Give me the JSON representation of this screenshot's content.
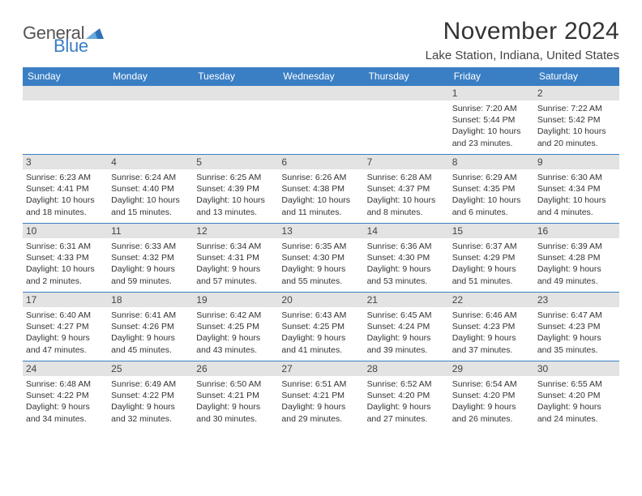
{
  "logo": {
    "word1": "General",
    "word2": "Blue",
    "tri_color": "#2f72b8"
  },
  "title": "November 2024",
  "location": "Lake Station, Indiana, United States",
  "colors": {
    "header_bg": "#3a7fc4",
    "header_fg": "#ffffff",
    "daynum_bg": "#e3e3e3",
    "rule": "#3a7fc4",
    "text": "#333333"
  },
  "day_headers": [
    "Sunday",
    "Monday",
    "Tuesday",
    "Wednesday",
    "Thursday",
    "Friday",
    "Saturday"
  ],
  "weeks": [
    [
      null,
      null,
      null,
      null,
      null,
      {
        "n": "1",
        "sunrise": "7:20 AM",
        "sunset": "5:44 PM",
        "day_h": 10,
        "day_m": 23
      },
      {
        "n": "2",
        "sunrise": "7:22 AM",
        "sunset": "5:42 PM",
        "day_h": 10,
        "day_m": 20
      }
    ],
    [
      {
        "n": "3",
        "sunrise": "6:23 AM",
        "sunset": "4:41 PM",
        "day_h": 10,
        "day_m": 18
      },
      {
        "n": "4",
        "sunrise": "6:24 AM",
        "sunset": "4:40 PM",
        "day_h": 10,
        "day_m": 15
      },
      {
        "n": "5",
        "sunrise": "6:25 AM",
        "sunset": "4:39 PM",
        "day_h": 10,
        "day_m": 13
      },
      {
        "n": "6",
        "sunrise": "6:26 AM",
        "sunset": "4:38 PM",
        "day_h": 10,
        "day_m": 11
      },
      {
        "n": "7",
        "sunrise": "6:28 AM",
        "sunset": "4:37 PM",
        "day_h": 10,
        "day_m": 8
      },
      {
        "n": "8",
        "sunrise": "6:29 AM",
        "sunset": "4:35 PM",
        "day_h": 10,
        "day_m": 6
      },
      {
        "n": "9",
        "sunrise": "6:30 AM",
        "sunset": "4:34 PM",
        "day_h": 10,
        "day_m": 4
      }
    ],
    [
      {
        "n": "10",
        "sunrise": "6:31 AM",
        "sunset": "4:33 PM",
        "day_h": 10,
        "day_m": 2
      },
      {
        "n": "11",
        "sunrise": "6:33 AM",
        "sunset": "4:32 PM",
        "day_h": 9,
        "day_m": 59
      },
      {
        "n": "12",
        "sunrise": "6:34 AM",
        "sunset": "4:31 PM",
        "day_h": 9,
        "day_m": 57
      },
      {
        "n": "13",
        "sunrise": "6:35 AM",
        "sunset": "4:30 PM",
        "day_h": 9,
        "day_m": 55
      },
      {
        "n": "14",
        "sunrise": "6:36 AM",
        "sunset": "4:30 PM",
        "day_h": 9,
        "day_m": 53
      },
      {
        "n": "15",
        "sunrise": "6:37 AM",
        "sunset": "4:29 PM",
        "day_h": 9,
        "day_m": 51
      },
      {
        "n": "16",
        "sunrise": "6:39 AM",
        "sunset": "4:28 PM",
        "day_h": 9,
        "day_m": 49
      }
    ],
    [
      {
        "n": "17",
        "sunrise": "6:40 AM",
        "sunset": "4:27 PM",
        "day_h": 9,
        "day_m": 47
      },
      {
        "n": "18",
        "sunrise": "6:41 AM",
        "sunset": "4:26 PM",
        "day_h": 9,
        "day_m": 45
      },
      {
        "n": "19",
        "sunrise": "6:42 AM",
        "sunset": "4:25 PM",
        "day_h": 9,
        "day_m": 43
      },
      {
        "n": "20",
        "sunrise": "6:43 AM",
        "sunset": "4:25 PM",
        "day_h": 9,
        "day_m": 41
      },
      {
        "n": "21",
        "sunrise": "6:45 AM",
        "sunset": "4:24 PM",
        "day_h": 9,
        "day_m": 39
      },
      {
        "n": "22",
        "sunrise": "6:46 AM",
        "sunset": "4:23 PM",
        "day_h": 9,
        "day_m": 37
      },
      {
        "n": "23",
        "sunrise": "6:47 AM",
        "sunset": "4:23 PM",
        "day_h": 9,
        "day_m": 35
      }
    ],
    [
      {
        "n": "24",
        "sunrise": "6:48 AM",
        "sunset": "4:22 PM",
        "day_h": 9,
        "day_m": 34
      },
      {
        "n": "25",
        "sunrise": "6:49 AM",
        "sunset": "4:22 PM",
        "day_h": 9,
        "day_m": 32
      },
      {
        "n": "26",
        "sunrise": "6:50 AM",
        "sunset": "4:21 PM",
        "day_h": 9,
        "day_m": 30
      },
      {
        "n": "27",
        "sunrise": "6:51 AM",
        "sunset": "4:21 PM",
        "day_h": 9,
        "day_m": 29
      },
      {
        "n": "28",
        "sunrise": "6:52 AM",
        "sunset": "4:20 PM",
        "day_h": 9,
        "day_m": 27
      },
      {
        "n": "29",
        "sunrise": "6:54 AM",
        "sunset": "4:20 PM",
        "day_h": 9,
        "day_m": 26
      },
      {
        "n": "30",
        "sunrise": "6:55 AM",
        "sunset": "4:20 PM",
        "day_h": 9,
        "day_m": 24
      }
    ]
  ]
}
